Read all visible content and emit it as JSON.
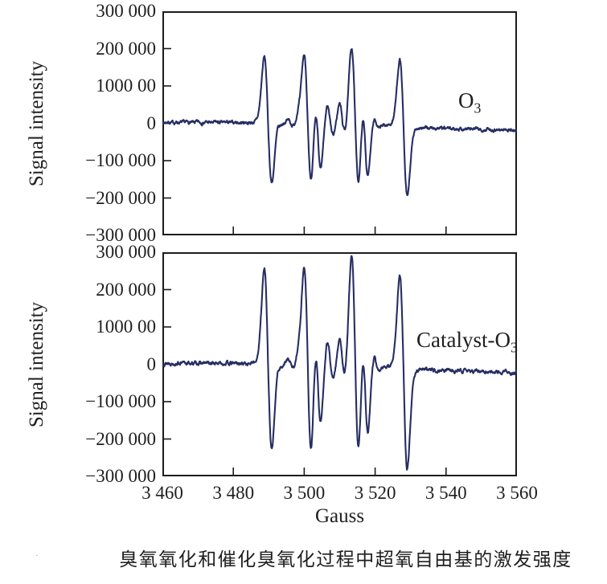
{
  "figure": {
    "caption": "臭氧氧化和催化臭氧化过程中超氧自由基的激发强度",
    "caption_marker": "·"
  },
  "colors": {
    "line": "#262e63",
    "axis": "#1c1c1c",
    "text": "#1f1f1f",
    "background": "#ffffff"
  },
  "chart_data": {
    "type": "line",
    "subtype": "EPR first-derivative spectra (DMPO superoxide adduct), stacked panels",
    "xlabel": "Gauss",
    "x_range": [
      3460,
      3560
    ],
    "x_ticks": [
      3460,
      3480,
      3500,
      3520,
      3540,
      3560
    ],
    "x_tick_labels": [
      "3 460",
      "3 480",
      "3 500",
      "3 520",
      "3 540",
      "3 560"
    ],
    "y_range": [
      -300000,
      300000
    ],
    "y_ticks": [
      300000,
      200000,
      100000,
      0,
      -100000,
      -200000,
      -300000
    ],
    "y_tick_labels": [
      "300 000",
      "200 000",
      "1000 00",
      "0",
      "−100 000",
      "−200 000",
      "−300 000"
    ],
    "grid": false,
    "legend_position": "inside-right",
    "panels": [
      {
        "name": "O3",
        "label": {
          "text": "O",
          "sub": "3"
        },
        "ylabel": "Signal intensity",
        "seed": 7,
        "noise": 3200,
        "baseline": [
          [
            3460,
            2500
          ],
          [
            3488,
            2000
          ],
          [
            3493,
            500
          ],
          [
            3500,
            0
          ],
          [
            3513,
            -2000
          ],
          [
            3520,
            -4000
          ],
          [
            3526,
            -5000
          ],
          [
            3531,
            -12000
          ],
          [
            3545,
            -15000
          ],
          [
            3560,
            -18000
          ]
        ],
        "peaks": [
          {
            "c": 3489.8,
            "w": 1.05,
            "up": 175000,
            "down": 160000
          },
          {
            "c": 3492.9,
            "w": 0.6,
            "up": 9000,
            "down": 4000
          },
          {
            "c": 3496.2,
            "w": 0.7,
            "up": 10000,
            "down": 8000
          },
          {
            "c": 3498.8,
            "w": 0.6,
            "up": 15000,
            "down": 6000
          },
          {
            "c": 3501.0,
            "w": 1.05,
            "up": 186000,
            "down": 186000
          },
          {
            "c": 3503.8,
            "w": 0.85,
            "up": 92000,
            "down": 118000
          },
          {
            "c": 3507.4,
            "w": 0.85,
            "up": 52000,
            "down": 30000
          },
          {
            "c": 3510.8,
            "w": 0.85,
            "up": 55000,
            "down": 35000
          },
          {
            "c": 3514.4,
            "w": 1.05,
            "up": 205000,
            "down": 192000
          },
          {
            "c": 3517.1,
            "w": 0.85,
            "up": 100000,
            "down": 135000
          },
          {
            "c": 3520.4,
            "w": 0.7,
            "up": 22000,
            "down": 10000
          },
          {
            "c": 3528.0,
            "w": 1.05,
            "up": 176000,
            "down": 186000
          }
        ]
      },
      {
        "name": "Catalyst-O3",
        "label": {
          "text": "Catalyst-O",
          "sub": "3"
        },
        "ylabel": "Signal intensity",
        "seed": 13,
        "noise": 3400,
        "baseline": [
          [
            3460,
            3000
          ],
          [
            3488,
            2500
          ],
          [
            3493,
            500
          ],
          [
            3500,
            0
          ],
          [
            3513,
            -2500
          ],
          [
            3520,
            -5000
          ],
          [
            3526,
            -6000
          ],
          [
            3531,
            -14000
          ],
          [
            3545,
            -17000
          ],
          [
            3560,
            -22000
          ]
        ],
        "peaks": [
          {
            "c": 3489.8,
            "w": 1.05,
            "up": 253000,
            "down": 229000
          },
          {
            "c": 3492.9,
            "w": 0.6,
            "up": 11000,
            "down": 5000
          },
          {
            "c": 3496.2,
            "w": 0.7,
            "up": 13000,
            "down": 10000
          },
          {
            "c": 3498.8,
            "w": 0.6,
            "up": 18000,
            "down": 8000
          },
          {
            "c": 3501.0,
            "w": 1.05,
            "up": 263000,
            "down": 268000
          },
          {
            "c": 3503.8,
            "w": 0.85,
            "up": 120000,
            "down": 152000
          },
          {
            "c": 3507.4,
            "w": 0.85,
            "up": 66000,
            "down": 40000
          },
          {
            "c": 3510.8,
            "w": 0.85,
            "up": 70000,
            "down": 46000
          },
          {
            "c": 3514.4,
            "w": 1.05,
            "up": 292000,
            "down": 272000
          },
          {
            "c": 3517.1,
            "w": 0.85,
            "up": 130000,
            "down": 172000
          },
          {
            "c": 3520.4,
            "w": 0.7,
            "up": 28000,
            "down": 13000
          },
          {
            "c": 3528.0,
            "w": 1.05,
            "up": 243000,
            "down": 268000
          }
        ]
      }
    ]
  }
}
